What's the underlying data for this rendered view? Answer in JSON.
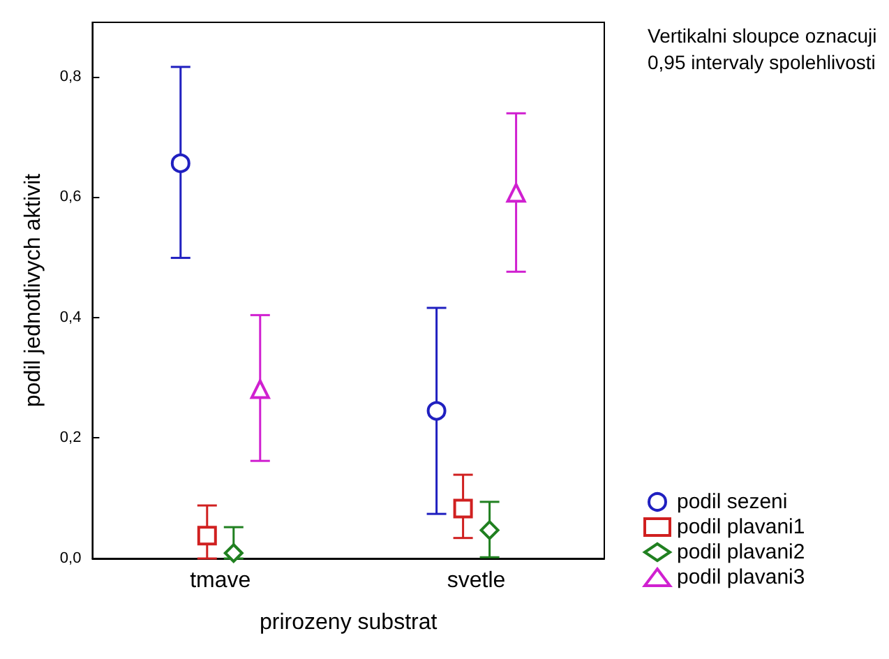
{
  "chart_data": {
    "type": "scatter",
    "xlabel": "prirozeny substrat",
    "ylabel": "podil jednotlivych aktivit",
    "categories": [
      "tmave",
      "svetle"
    ],
    "series": [
      {
        "name": "podil sezeni",
        "color": "#2020c0",
        "marker": "circle",
        "values": [
          0.656,
          0.245
        ],
        "errors": [
          [
            0.499,
            0.816
          ],
          [
            0.074,
            0.416
          ]
        ]
      },
      {
        "name": "podil plavani1",
        "color": "#d02020",
        "marker": "square",
        "values": [
          0.038,
          0.083
        ],
        "errors": [
          [
            0.0,
            0.088
          ],
          [
            0.034,
            0.139
          ]
        ]
      },
      {
        "name": "podil plavani2",
        "color": "#208020",
        "marker": "diamond",
        "values": [
          0.009,
          0.047
        ],
        "errors": [
          [
            0.0,
            0.052
          ],
          [
            0.002,
            0.094
          ]
        ]
      },
      {
        "name": "podil plavani3",
        "color": "#d020d0",
        "marker": "triangle",
        "values": [
          0.281,
          0.607
        ],
        "errors": [
          [
            0.162,
            0.404
          ],
          [
            0.476,
            0.739
          ]
        ]
      }
    ],
    "ylim": [
      0,
      0.89
    ],
    "yticks": [
      {
        "value": 0,
        "label": "0,0"
      },
      {
        "value": 0.2,
        "label": "0,2"
      },
      {
        "value": 0.4,
        "label": "0,4"
      },
      {
        "value": 0.6,
        "label": "0,6"
      },
      {
        "value": 0.8,
        "label": "0,8"
      }
    ],
    "grid": false,
    "legend": "bottom right",
    "annotations": [
      "Vertikalni sloupce oznacuji 0,95 intervaly spolehlivosti"
    ]
  }
}
